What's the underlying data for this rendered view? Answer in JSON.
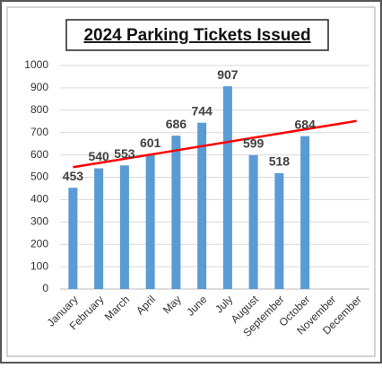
{
  "chart_data": {
    "type": "bar",
    "title": "2024 Parking Tickets Issued",
    "categories": [
      "January",
      "February",
      "March",
      "April",
      "May",
      "June",
      "July",
      "August",
      "September",
      "October",
      "November",
      "December"
    ],
    "values": [
      453,
      540,
      553,
      601,
      686,
      744,
      907,
      599,
      518,
      684,
      null,
      null
    ],
    "color": "#5b9bd5",
    "ylim": [
      0,
      1000
    ],
    "yticks": [
      0,
      100,
      200,
      300,
      400,
      500,
      600,
      700,
      800,
      900,
      1000
    ],
    "grid": true,
    "trendline": {
      "color": "#ff0000",
      "values": [
        545,
        752
      ]
    }
  }
}
